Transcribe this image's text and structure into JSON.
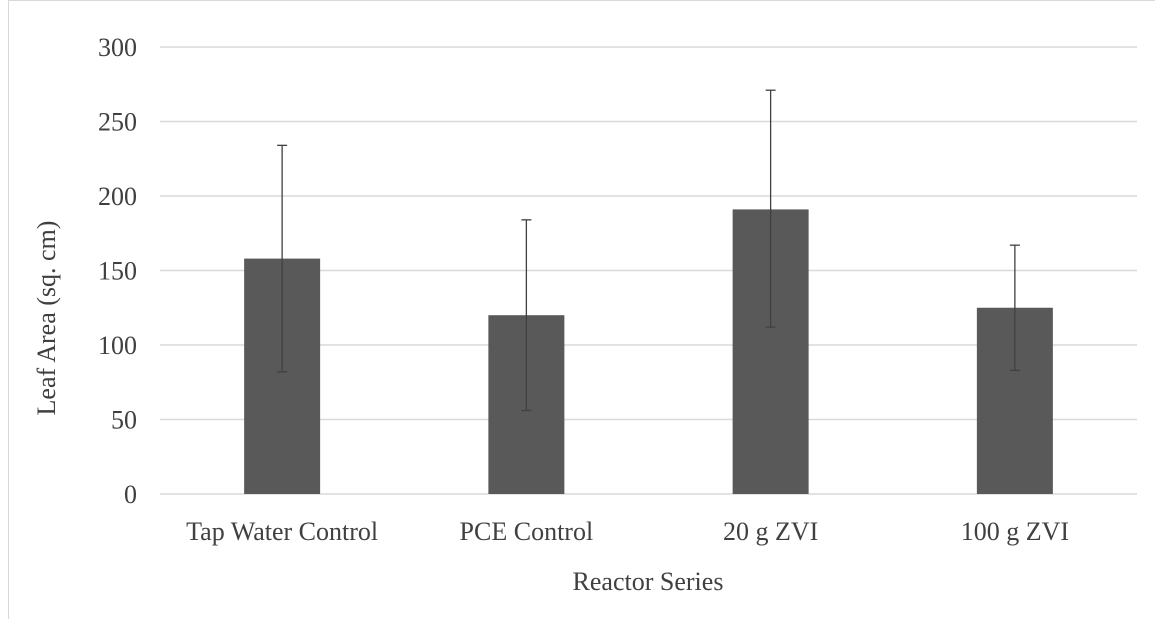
{
  "chart_data": {
    "type": "bar",
    "title": "",
    "xlabel": "Reactor Series",
    "ylabel": "Leaf Area (sq. cm)",
    "categories": [
      "Tap Water Control",
      "PCE Control",
      "20 g ZVI",
      "100 g ZVI"
    ],
    "values": [
      158,
      120,
      191,
      125
    ],
    "error_upper": [
      234,
      184,
      271,
      167
    ],
    "error_lower": [
      82,
      56,
      112,
      83
    ],
    "ylim": [
      0,
      300
    ],
    "yticks": [
      0,
      50,
      100,
      150,
      200,
      250,
      300
    ],
    "grid": true,
    "legend": "none",
    "bar_color": "#595959",
    "error_bar_color": "#404040",
    "grid_color": "#d9d9d9"
  }
}
